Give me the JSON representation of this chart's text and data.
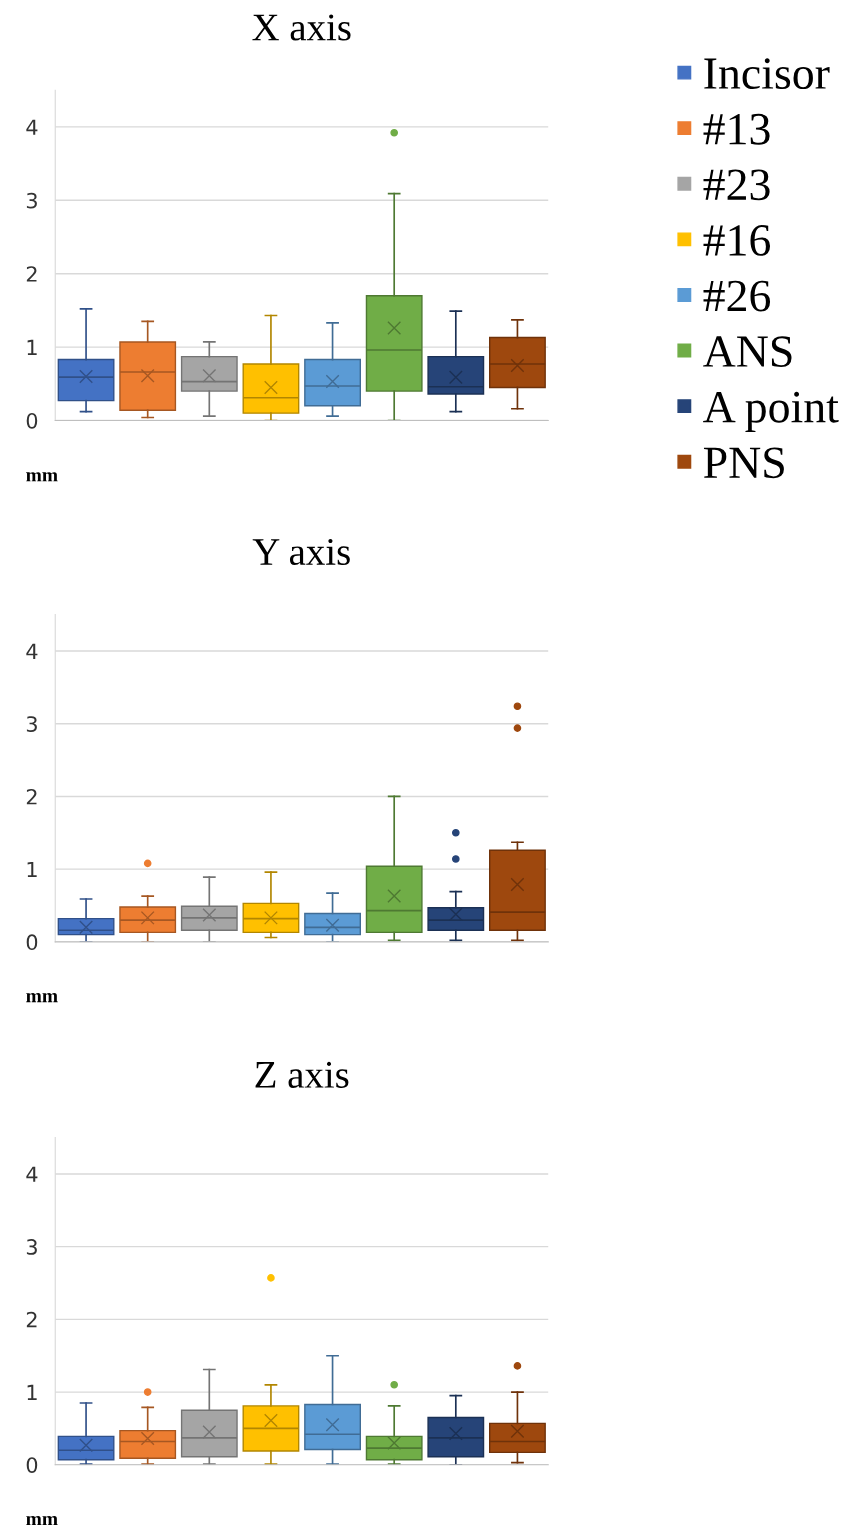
{
  "chart_data": [
    {
      "type": "box",
      "title": "X axis",
      "annotations": [
        "mm"
      ],
      "categories": [
        null,
        null,
        null,
        null,
        null,
        null,
        null,
        null
      ],
      "ylim": [
        0,
        4.5
      ],
      "yticks": [
        0,
        1,
        2,
        3,
        4
      ],
      "grid": "y",
      "legend": "right",
      "marker": "cross",
      "series": [
        {
          "name": "Incisor",
          "color": "#4472c4",
          "boxes": [
            {
              "low": 0.12,
              "q1": 0.27,
              "median": 0.59,
              "q3": 0.83,
              "high": 1.52,
              "mean": 0.6
            },
            null,
            null,
            null,
            null,
            null,
            null,
            null
          ]
        },
        {
          "name": "#13",
          "color": "#ed7d31",
          "boxes": [
            null,
            {
              "low": 0.04,
              "q1": 0.14,
              "median": 0.66,
              "q3": 1.07,
              "high": 1.35,
              "mean": 0.61
            },
            null,
            null,
            null,
            null,
            null,
            null
          ]
        },
        {
          "name": "#23",
          "color": "#a5a5a5",
          "boxes": [
            null,
            null,
            {
              "low": 0.06,
              "q1": 0.4,
              "median": 0.53,
              "q3": 0.87,
              "high": 1.07,
              "mean": 0.61
            },
            null,
            null,
            null,
            null,
            null
          ]
        },
        {
          "name": "#16",
          "color": "#ffc000",
          "boxes": [
            null,
            null,
            null,
            {
              "low": 0,
              "q1": 0.1,
              "median": 0.31,
              "q3": 0.77,
              "high": 1.43,
              "mean": 0.45
            },
            null,
            null,
            null,
            null
          ]
        },
        {
          "name": "#26",
          "color": "#5b9bd5",
          "boxes": [
            null,
            null,
            null,
            null,
            {
              "low": 0.06,
              "q1": 0.2,
              "median": 0.47,
              "q3": 0.83,
              "high": 1.33,
              "mean": 0.53
            },
            null,
            null,
            null
          ]
        },
        {
          "name": "ANS",
          "color": "#70ad47",
          "boxes": [
            null,
            null,
            null,
            null,
            null,
            {
              "low": 0,
              "q1": 0.4,
              "median": 0.96,
              "q3": 1.7,
              "high": 3.09,
              "mean": 1.26,
              "outliers": [
                3.92
              ]
            },
            null,
            null
          ]
        },
        {
          "name": "A point",
          "color": "#264478",
          "boxes": [
            null,
            null,
            null,
            null,
            null,
            null,
            {
              "low": 0.12,
              "q1": 0.36,
              "median": 0.46,
              "q3": 0.87,
              "high": 1.49,
              "mean": 0.59
            },
            null
          ]
        },
        {
          "name": "PNS",
          "color": "#9e480e",
          "boxes": [
            null,
            null,
            null,
            null,
            null,
            null,
            null,
            {
              "low": 0.16,
              "q1": 0.45,
              "median": 0.77,
              "q3": 1.13,
              "high": 1.37,
              "mean": 0.75
            }
          ]
        }
      ]
    },
    {
      "type": "box",
      "title": "Y axis",
      "annotations": [
        "mm"
      ],
      "categories": [
        null,
        null,
        null,
        null,
        null,
        null,
        null,
        null
      ],
      "ylim": [
        0,
        4.5
      ],
      "yticks": [
        0,
        1,
        2,
        3,
        4
      ],
      "grid": "y",
      "marker": "cross",
      "series": [
        {
          "color": "#4472c4",
          "boxes": [
            {
              "low": 0,
              "q1": 0.1,
              "median": 0.16,
              "q3": 0.32,
              "high": 0.59,
              "mean": 0.2
            },
            null,
            null,
            null,
            null,
            null,
            null,
            null
          ]
        },
        {
          "color": "#ed7d31",
          "boxes": [
            null,
            {
              "low": 0,
              "q1": 0.13,
              "median": 0.3,
              "q3": 0.48,
              "high": 0.63,
              "mean": 0.33,
              "outliers": [
                1.08
              ]
            },
            null,
            null,
            null,
            null,
            null,
            null
          ]
        },
        {
          "color": "#a5a5a5",
          "boxes": [
            null,
            null,
            {
              "low": 0,
              "q1": 0.16,
              "median": 0.33,
              "q3": 0.49,
              "high": 0.89,
              "mean": 0.37
            },
            null,
            null,
            null,
            null,
            null
          ]
        },
        {
          "color": "#ffc000",
          "boxes": [
            null,
            null,
            null,
            {
              "low": 0.06,
              "q1": 0.13,
              "median": 0.32,
              "q3": 0.53,
              "high": 0.96,
              "mean": 0.33
            },
            null,
            null,
            null,
            null
          ]
        },
        {
          "color": "#5b9bd5",
          "boxes": [
            null,
            null,
            null,
            null,
            {
              "low": 0,
              "q1": 0.1,
              "median": 0.2,
              "q3": 0.39,
              "high": 0.67,
              "mean": 0.23
            },
            null,
            null,
            null
          ]
        },
        {
          "color": "#70ad47",
          "boxes": [
            null,
            null,
            null,
            null,
            null,
            {
              "low": 0.02,
              "q1": 0.13,
              "median": 0.43,
              "q3": 1.04,
              "high": 2.0,
              "mean": 0.63
            },
            null,
            null
          ]
        },
        {
          "color": "#264478",
          "boxes": [
            null,
            null,
            null,
            null,
            null,
            null,
            {
              "low": 0.02,
              "q1": 0.16,
              "median": 0.3,
              "q3": 0.47,
              "high": 0.69,
              "mean": 0.38,
              "outliers": [
                1.14,
                1.5
              ]
            },
            null
          ]
        },
        {
          "color": "#9e480e",
          "boxes": [
            null,
            null,
            null,
            null,
            null,
            null,
            null,
            {
              "low": 0.02,
              "q1": 0.16,
              "median": 0.41,
              "q3": 1.26,
              "high": 1.37,
              "mean": 0.79,
              "outliers": [
                2.94,
                3.24
              ]
            }
          ]
        }
      ]
    },
    {
      "type": "box",
      "title": "Z axis",
      "annotations": [
        "mm"
      ],
      "categories": [
        null,
        null,
        null,
        null,
        null,
        null,
        null,
        null
      ],
      "ylim": [
        0,
        4.5
      ],
      "yticks": [
        0,
        1,
        2,
        3,
        4
      ],
      "grid": "y",
      "marker": "cross",
      "series": [
        {
          "color": "#4472c4",
          "boxes": [
            {
              "low": 0.01,
              "q1": 0.07,
              "median": 0.2,
              "q3": 0.39,
              "high": 0.85,
              "mean": 0.27
            },
            null,
            null,
            null,
            null,
            null,
            null,
            null
          ]
        },
        {
          "color": "#ed7d31",
          "boxes": [
            null,
            {
              "low": 0.01,
              "q1": 0.09,
              "median": 0.32,
              "q3": 0.47,
              "high": 0.79,
              "mean": 0.36,
              "outliers": [
                1.0
              ]
            },
            null,
            null,
            null,
            null,
            null,
            null
          ]
        },
        {
          "color": "#a5a5a5",
          "boxes": [
            null,
            null,
            {
              "low": 0.01,
              "q1": 0.11,
              "median": 0.37,
              "q3": 0.75,
              "high": 1.31,
              "mean": 0.45
            },
            null,
            null,
            null,
            null,
            null
          ]
        },
        {
          "color": "#ffc000",
          "boxes": [
            null,
            null,
            null,
            {
              "low": 0.01,
              "q1": 0.19,
              "median": 0.5,
              "q3": 0.81,
              "high": 1.1,
              "mean": 0.61,
              "outliers": [
                2.57
              ]
            },
            null,
            null,
            null,
            null
          ]
        },
        {
          "color": "#5b9bd5",
          "boxes": [
            null,
            null,
            null,
            null,
            {
              "low": 0.01,
              "q1": 0.21,
              "median": 0.42,
              "q3": 0.83,
              "high": 1.5,
              "mean": 0.55
            },
            null,
            null,
            null
          ]
        },
        {
          "color": "#70ad47",
          "boxes": [
            null,
            null,
            null,
            null,
            null,
            {
              "low": 0.01,
              "q1": 0.07,
              "median": 0.23,
              "q3": 0.39,
              "high": 0.81,
              "mean": 0.3,
              "outliers": [
                1.1
              ]
            },
            null,
            null
          ]
        },
        {
          "color": "#264478",
          "boxes": [
            null,
            null,
            null,
            null,
            null,
            null,
            {
              "low": 0,
              "q1": 0.11,
              "median": 0.37,
              "q3": 0.65,
              "high": 0.95,
              "mean": 0.43
            },
            null
          ]
        },
        {
          "color": "#9e480e",
          "boxes": [
            null,
            null,
            null,
            null,
            null,
            null,
            null,
            {
              "low": 0.03,
              "q1": 0.17,
              "median": 0.32,
              "q3": 0.57,
              "high": 1.0,
              "mean": 0.46,
              "outliers": [
                1.36
              ]
            }
          ]
        }
      ]
    }
  ]
}
